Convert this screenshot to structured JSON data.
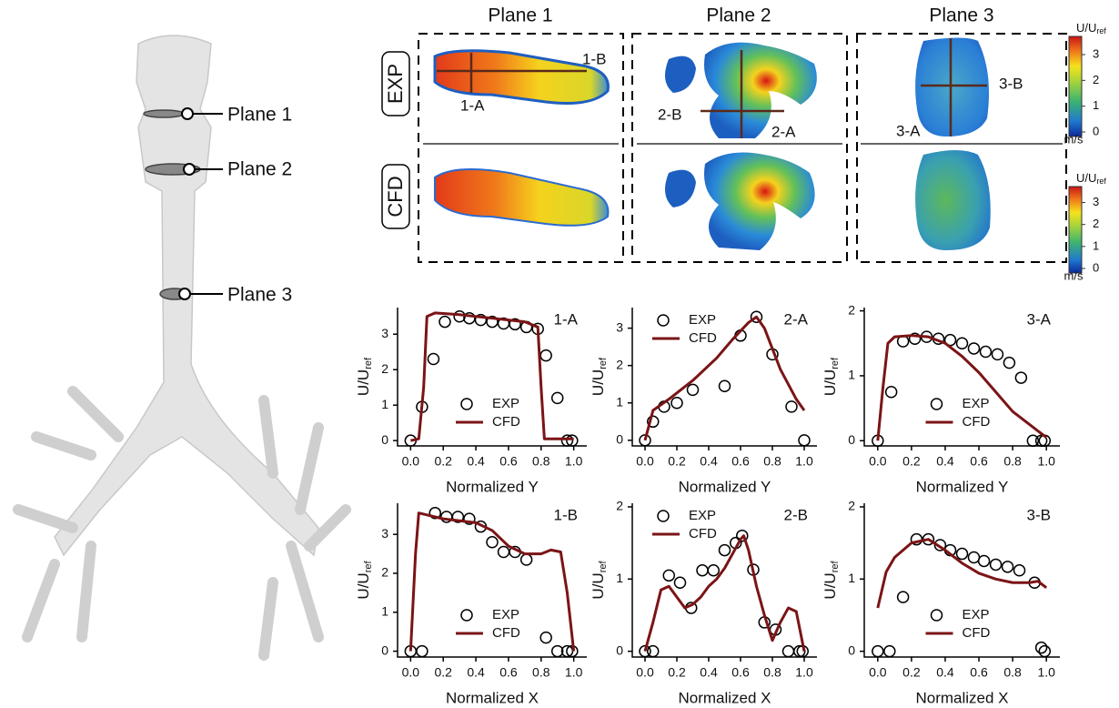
{
  "anatomy": {
    "labels": [
      "Plane 1",
      "Plane 2",
      "Plane 3"
    ]
  },
  "contour_panel": {
    "columns": [
      "Plane 1",
      "Plane 2",
      "Plane 3"
    ],
    "rows": [
      "EXP",
      "CFD"
    ],
    "line_labels": [
      "1-A",
      "1-B",
      "2-B",
      "2-A",
      "3-A",
      "3-B"
    ],
    "colorbar": {
      "label_main": "U/U",
      "label_sub": "ref",
      "unit": "m/s",
      "ticks": [
        0,
        1,
        2,
        3
      ]
    }
  },
  "chart_data": [
    {
      "type": "line",
      "title": "1-A",
      "xlabel": "Normalized Y",
      "ylabel_main": "U/U",
      "ylabel_sub": "ref",
      "legend": "lower-center",
      "xlim": [
        -0.08,
        1.08
      ],
      "ylim": [
        -0.15,
        3.75
      ],
      "xticks": [
        {
          "value": 0,
          "label": "0.0"
        },
        0.2,
        0.4,
        0.6,
        0.8,
        {
          "value": 1,
          "label": "1.0"
        }
      ],
      "yticks": [
        0,
        1,
        2,
        3
      ],
      "series": [
        {
          "name": "EXP",
          "color": "#000000",
          "style": "markers",
          "x": [
            0,
            0.07,
            0.14,
            0.21,
            0.3,
            0.36,
            0.43,
            0.5,
            0.57,
            0.64,
            0.71,
            0.78,
            0.83,
            0.9,
            0.96,
            0.99
          ],
          "values": [
            0,
            0.95,
            2.3,
            3.35,
            3.5,
            3.45,
            3.4,
            3.35,
            3.3,
            3.28,
            3.2,
            3.15,
            2.4,
            1.2,
            0,
            0
          ]
        },
        {
          "name": "CFD",
          "color": "#7b1416",
          "style": "line",
          "x": [
            0,
            0.05,
            0.08,
            0.1,
            0.15,
            0.3,
            0.5,
            0.7,
            0.78,
            0.8,
            0.82,
            1.0
          ],
          "values": [
            0,
            0.05,
            1.5,
            3.5,
            3.6,
            3.55,
            3.45,
            3.35,
            3.2,
            1.5,
            0.05,
            0.05
          ]
        }
      ]
    },
    {
      "type": "line",
      "title": "2-A",
      "xlabel": "Normalized Y",
      "ylabel_main": "U/U",
      "ylabel_sub": "ref",
      "legend": "upper-left",
      "xlim": [
        -0.08,
        1.08
      ],
      "ylim": [
        -0.15,
        3.55
      ],
      "xticks": [
        {
          "value": 0,
          "label": "0.0"
        },
        0.2,
        0.4,
        0.6,
        0.8,
        {
          "value": 1,
          "label": "1.0"
        }
      ],
      "yticks": [
        0,
        1,
        2,
        3
      ],
      "series": [
        {
          "name": "EXP",
          "color": "#000000",
          "style": "markers",
          "x": [
            0,
            0.05,
            0.12,
            0.2,
            0.3,
            0.5,
            0.6,
            0.7,
            0.8,
            0.92,
            1.0
          ],
          "values": [
            0,
            0.5,
            0.9,
            1.0,
            1.35,
            1.45,
            2.8,
            3.3,
            2.3,
            0.9,
            0
          ]
        },
        {
          "name": "CFD",
          "color": "#7b1416",
          "style": "line",
          "x": [
            0,
            0.05,
            0.15,
            0.3,
            0.45,
            0.55,
            0.65,
            0.7,
            0.75,
            0.85,
            0.95,
            1.0
          ],
          "values": [
            0,
            0.8,
            1.1,
            1.6,
            2.2,
            2.7,
            3.15,
            3.3,
            3.0,
            1.9,
            1.1,
            0.8
          ]
        }
      ]
    },
    {
      "type": "line",
      "title": "3-A",
      "xlabel": "Normalized Y",
      "ylabel_main": "U/U",
      "ylabel_sub": "ref",
      "legend": "lower-center",
      "xlim": [
        -0.08,
        1.08
      ],
      "ylim": [
        -0.08,
        2.05
      ],
      "xticks": [
        {
          "value": 0,
          "label": "0.0"
        },
        0.2,
        0.4,
        0.6,
        0.8,
        {
          "value": 1,
          "label": "1.0"
        }
      ],
      "yticks": [
        0,
        1,
        2
      ],
      "series": [
        {
          "name": "EXP",
          "color": "#000000",
          "style": "markers",
          "x": [
            0,
            0.08,
            0.15,
            0.22,
            0.29,
            0.36,
            0.43,
            0.5,
            0.57,
            0.64,
            0.71,
            0.78,
            0.85,
            0.92,
            0.97,
            0.99
          ],
          "values": [
            0,
            0.75,
            1.53,
            1.57,
            1.6,
            1.57,
            1.55,
            1.5,
            1.42,
            1.37,
            1.33,
            1.2,
            0.97,
            0,
            0,
            0
          ]
        },
        {
          "name": "CFD",
          "color": "#7b1416",
          "style": "line",
          "x": [
            0,
            0.03,
            0.06,
            0.1,
            0.2,
            0.3,
            0.4,
            0.5,
            0.6,
            0.7,
            0.8,
            0.9,
            1.0
          ],
          "values": [
            0,
            0.8,
            1.5,
            1.6,
            1.62,
            1.6,
            1.5,
            1.3,
            1.05,
            0.75,
            0.45,
            0.25,
            0.05
          ]
        }
      ]
    },
    {
      "type": "line",
      "title": "1-B",
      "xlabel": "Normalized X",
      "ylabel_main": "U/U",
      "ylabel_sub": "ref",
      "legend": "lower-center",
      "xlim": [
        -0.08,
        1.08
      ],
      "ylim": [
        -0.15,
        3.8
      ],
      "xticks": [
        {
          "value": 0,
          "label": "0.0"
        },
        0.2,
        0.4,
        0.6,
        0.8,
        {
          "value": 1,
          "label": "1.0"
        }
      ],
      "yticks": [
        0,
        1,
        2,
        3
      ],
      "series": [
        {
          "name": "EXP",
          "color": "#000000",
          "style": "markers",
          "x": [
            0,
            0.07,
            0.15,
            0.22,
            0.29,
            0.36,
            0.43,
            0.5,
            0.57,
            0.64,
            0.71,
            0.83,
            0.9,
            0.96,
            0.99
          ],
          "values": [
            0,
            0,
            3.55,
            3.45,
            3.45,
            3.4,
            3.2,
            2.8,
            2.55,
            2.55,
            2.35,
            0.35,
            0,
            0,
            0
          ]
        },
        {
          "name": "CFD",
          "color": "#7b1416",
          "style": "line",
          "x": [
            0,
            0.03,
            0.05,
            0.1,
            0.2,
            0.3,
            0.4,
            0.5,
            0.6,
            0.7,
            0.8,
            0.86,
            0.92,
            0.96,
            1.0
          ],
          "values": [
            0,
            2.5,
            3.55,
            3.5,
            3.4,
            3.35,
            3.3,
            3.1,
            2.7,
            2.5,
            2.5,
            2.6,
            2.55,
            1.5,
            0
          ]
        }
      ]
    },
    {
      "type": "line",
      "title": "2-B",
      "xlabel": "Normalized X",
      "ylabel_main": "U/U",
      "ylabel_sub": "ref",
      "legend": "upper-left",
      "xlim": [
        -0.08,
        1.08
      ],
      "ylim": [
        -0.08,
        2.05
      ],
      "xticks": [
        {
          "value": 0,
          "label": "0.0"
        },
        0.2,
        0.4,
        0.6,
        0.8,
        {
          "value": 1,
          "label": "1.0"
        }
      ],
      "yticks": [
        0,
        1,
        2
      ],
      "series": [
        {
          "name": "EXP",
          "color": "#000000",
          "style": "markers",
          "x": [
            0,
            0.05,
            0.15,
            0.22,
            0.29,
            0.36,
            0.43,
            0.5,
            0.57,
            0.61,
            0.68,
            0.75,
            0.82,
            0.9,
            0.97,
            0.99
          ],
          "values": [
            0,
            0,
            1.05,
            0.95,
            0.6,
            1.12,
            1.12,
            1.4,
            1.5,
            1.6,
            1.13,
            0.4,
            0.3,
            0,
            0,
            0
          ]
        },
        {
          "name": "CFD",
          "color": "#7b1416",
          "style": "line",
          "x": [
            0,
            0.05,
            0.1,
            0.15,
            0.2,
            0.25,
            0.3,
            0.35,
            0.4,
            0.45,
            0.5,
            0.55,
            0.6,
            0.62,
            0.65,
            0.7,
            0.75,
            0.8,
            0.85,
            0.9,
            0.95,
            1.0
          ],
          "values": [
            0,
            0.4,
            0.85,
            0.9,
            0.75,
            0.6,
            0.65,
            0.75,
            0.9,
            1.0,
            1.15,
            1.35,
            1.55,
            1.6,
            1.4,
            0.9,
            0.5,
            0.15,
            0.4,
            0.6,
            0.55,
            0
          ]
        }
      ]
    },
    {
      "type": "line",
      "title": "3-B",
      "xlabel": "Normalized X",
      "ylabel_main": "U/U",
      "ylabel_sub": "ref",
      "legend": "lower-center",
      "xlim": [
        -0.08,
        1.08
      ],
      "ylim": [
        -0.08,
        2.05
      ],
      "xticks": [
        {
          "value": 0,
          "label": "0.0"
        },
        0.2,
        0.4,
        0.6,
        0.8,
        {
          "value": 1,
          "label": "1.0"
        }
      ],
      "yticks": [
        0,
        1,
        2
      ],
      "series": [
        {
          "name": "EXP",
          "color": "#000000",
          "style": "markers",
          "x": [
            0,
            0.07,
            0.15,
            0.23,
            0.3,
            0.37,
            0.43,
            0.5,
            0.57,
            0.63,
            0.7,
            0.77,
            0.84,
            0.93,
            0.97,
            0.99
          ],
          "values": [
            0,
            0,
            0.75,
            1.55,
            1.55,
            1.47,
            1.4,
            1.35,
            1.3,
            1.25,
            1.2,
            1.17,
            1.12,
            0.95,
            0.05,
            0
          ]
        },
        {
          "name": "CFD",
          "color": "#7b1416",
          "style": "line",
          "x": [
            0,
            0.05,
            0.1,
            0.2,
            0.3,
            0.4,
            0.5,
            0.6,
            0.7,
            0.8,
            0.9,
            0.95,
            1.0
          ],
          "values": [
            0.6,
            1.1,
            1.3,
            1.5,
            1.55,
            1.4,
            1.22,
            1.08,
            1.0,
            0.95,
            0.95,
            0.97,
            0.88
          ]
        }
      ]
    }
  ]
}
